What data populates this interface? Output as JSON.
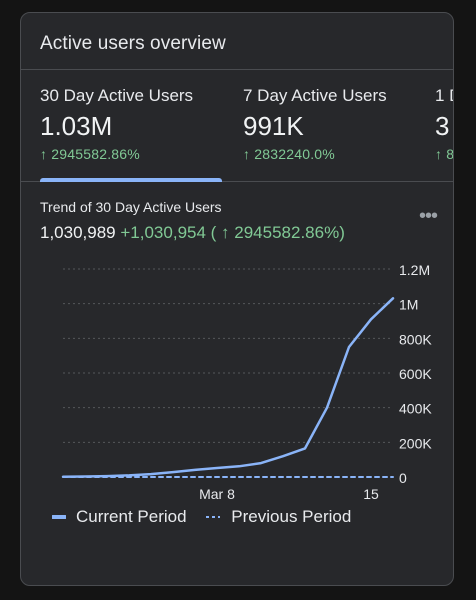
{
  "card": {
    "title": "Active users overview"
  },
  "metrics": [
    {
      "label": "30 Day Active Users",
      "value": "1.03M",
      "change": "↑ 2945582.86%"
    },
    {
      "label": "7 Day Active Users",
      "value": "991K",
      "change": "↑ 2832240.0%"
    },
    {
      "label": "1 D",
      "value": "3",
      "change": "↑ 8"
    }
  ],
  "trend": {
    "title": "Trend of 30 Day Active Users",
    "total": "1,030,989",
    "delta": "+1,030,954 ( ↑ 2945582.86%)",
    "more_icon": "more-horizontal-icon"
  },
  "colors": {
    "current": "#8ab4f8",
    "positive": "#81c995",
    "grid": "#55575b"
  },
  "chart_data": {
    "type": "line",
    "x": [
      1,
      2,
      3,
      4,
      5,
      6,
      7,
      8,
      9,
      10,
      11,
      12,
      13,
      14,
      15,
      16
    ],
    "x_tick_labels": [
      {
        "x": 8,
        "label": "Mar 8"
      },
      {
        "x": 15,
        "label": "15"
      }
    ],
    "y_ticks": [
      0,
      200000,
      400000,
      600000,
      800000,
      1000000,
      1200000
    ],
    "y_tick_labels": [
      "0",
      "200K",
      "400K",
      "600K",
      "800K",
      "1M",
      "1.2M"
    ],
    "ylim": [
      0,
      1200000
    ],
    "xlim": [
      1,
      16
    ],
    "grid": true,
    "legend_position": "bottom",
    "series": [
      {
        "name": "Current Period",
        "style": "solid",
        "values": [
          2000,
          3000,
          5000,
          9000,
          17000,
          28000,
          41000,
          52000,
          62000,
          80000,
          120000,
          165000,
          400000,
          750000,
          910000,
          1030989
        ]
      },
      {
        "name": "Previous Period",
        "style": "dashed",
        "values": [
          0,
          0,
          0,
          0,
          0,
          0,
          0,
          0,
          0,
          0,
          0,
          0,
          0,
          0,
          0,
          0
        ]
      }
    ]
  }
}
